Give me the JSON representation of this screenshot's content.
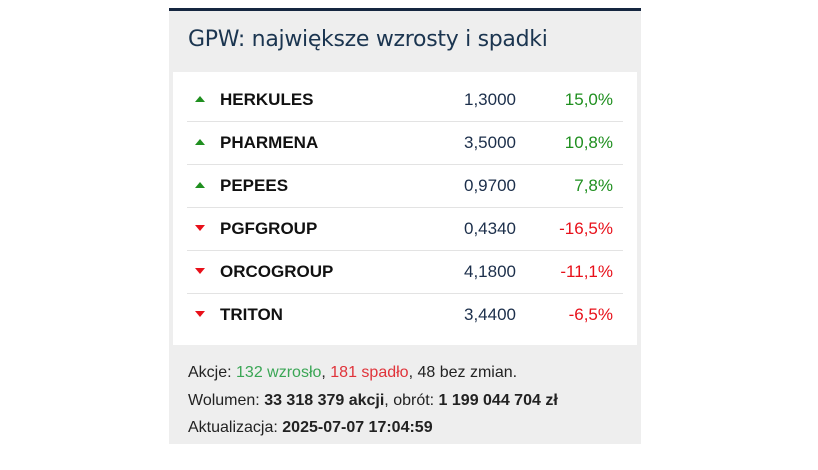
{
  "header": {
    "title": "GPW: największe wzrosty i spadki"
  },
  "table": {
    "up_color": "#1f8f1f",
    "down_color": "#e8101a",
    "rows": [
      [
        "HERKULES",
        "1,3000",
        "15,0%"
      ],
      [
        "PHARMENA",
        "3,5000",
        "10,8%"
      ],
      [
        "PEPEES",
        "0,9700",
        "7,8%"
      ],
      [
        "PGFGROUP",
        "0,4340",
        "-16,5%"
      ],
      [
        "ORCOGROUP",
        "4,1800",
        "-11,1%"
      ],
      [
        "TRITON",
        "3,4400",
        "-6,5%"
      ]
    ]
  },
  "footer": {
    "lines": [
      [
        {
          "text": "Akcje: "
        },
        {
          "text": "132 wzrosło",
          "color": "#3aa655"
        },
        {
          "text": ", "
        },
        {
          "text": "181 spadło",
          "color": "#e0333a"
        },
        {
          "text": ", 48 bez zmian."
        }
      ],
      [
        {
          "text": "Wolumen: "
        },
        {
          "text": "33 318 379 akcji",
          "bold": true
        },
        {
          "text": ", obrót: "
        },
        {
          "text": "1 199 044 704 zł",
          "bold": true
        }
      ],
      [
        {
          "text": "Aktualizacja: "
        },
        {
          "text": "2025-07-07 17:04:59",
          "bold": true
        }
      ]
    ]
  }
}
